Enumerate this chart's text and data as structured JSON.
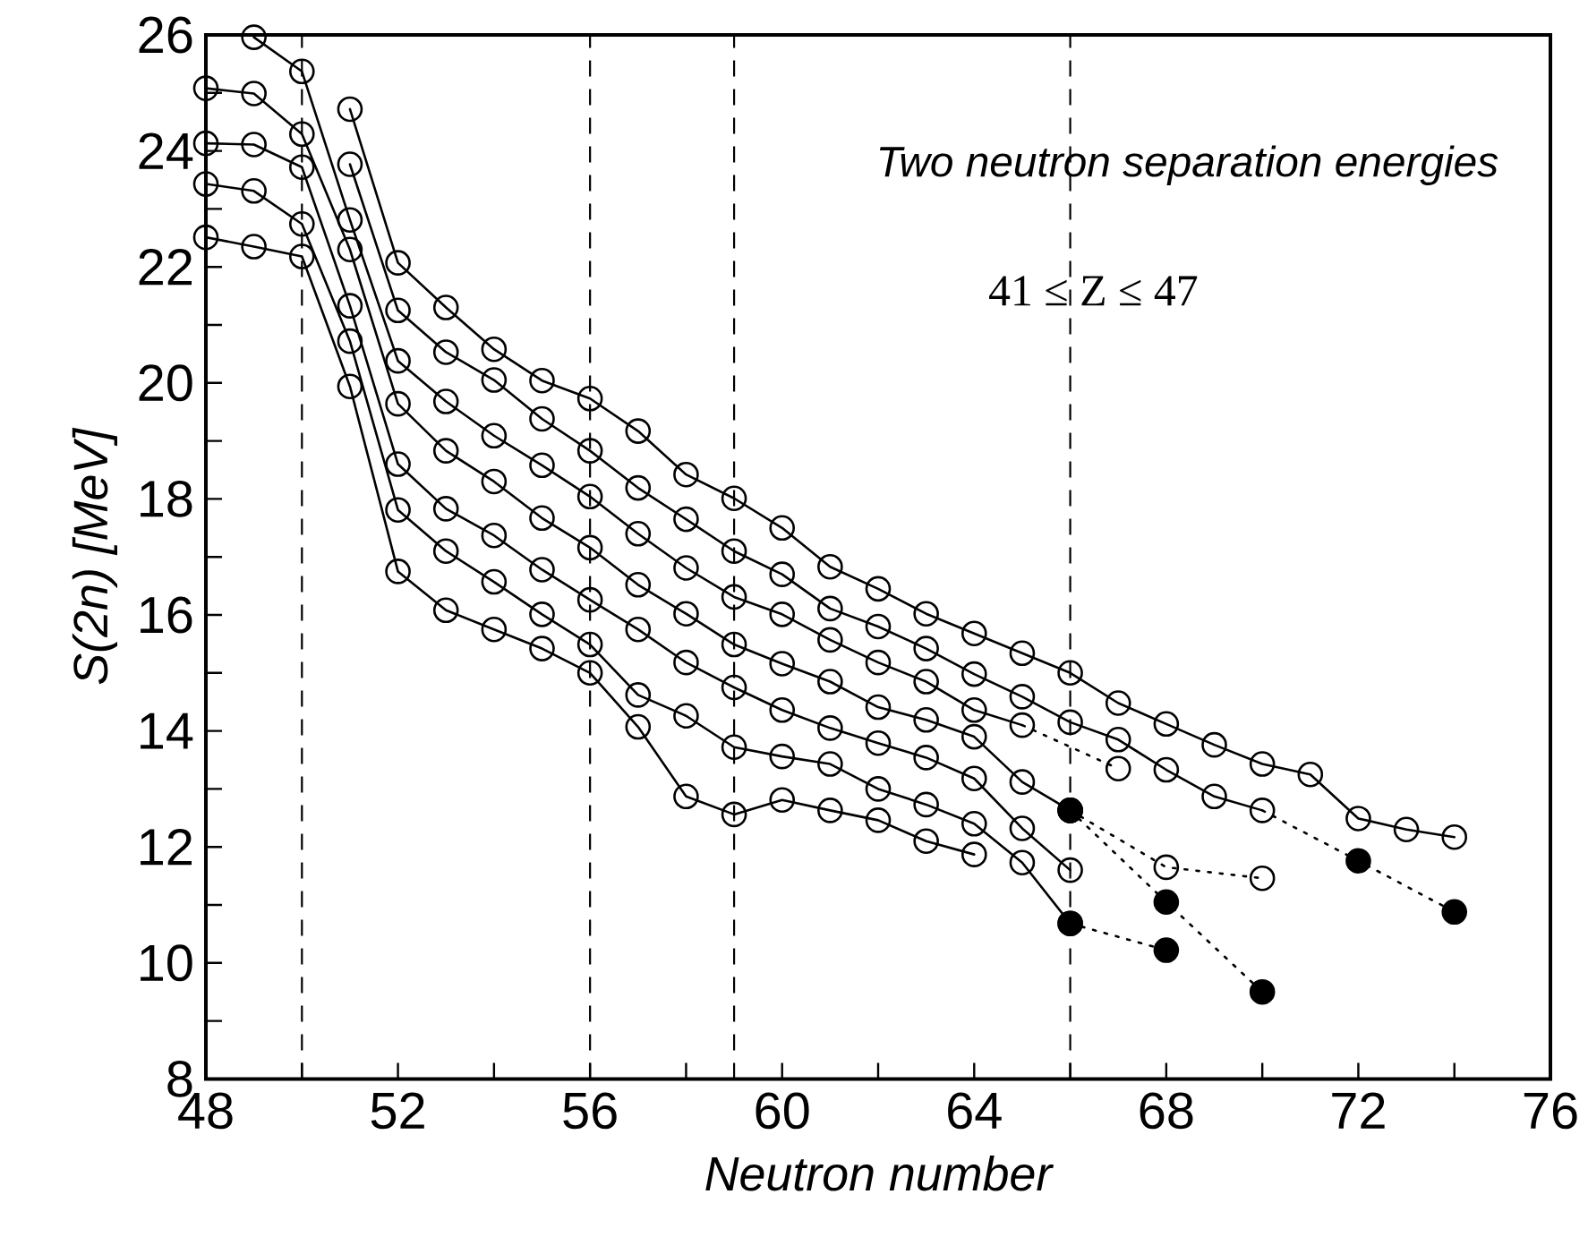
{
  "chart_data": {
    "type": "line",
    "title": "Two neutron separation energies",
    "subtitle": "41 ≤ Z ≤ 47",
    "xlabel": "Neutron number",
    "ylabel": "S(2n) [MeV]",
    "xlim": [
      48,
      76
    ],
    "ylim": [
      8,
      26
    ],
    "xticks": [
      48,
      {
        "value": 50,
        "label": null
      },
      52,
      {
        "value": 54,
        "label": null
      },
      56,
      {
        "value": 58,
        "label": null
      },
      60,
      {
        "value": 62,
        "label": null
      },
      64,
      {
        "value": 66,
        "label": null
      },
      68,
      {
        "value": 70,
        "label": null
      },
      72,
      {
        "value": 74,
        "label": null
      },
      76
    ],
    "yticks": [
      8,
      {
        "value": 9,
        "label": null
      },
      10,
      {
        "value": 11,
        "label": null
      },
      12,
      {
        "value": 13,
        "label": null
      },
      14,
      {
        "value": 15,
        "label": null
      },
      16,
      {
        "value": 17,
        "label": null
      },
      18,
      {
        "value": 19,
        "label": null
      },
      20,
      {
        "value": 21,
        "label": null
      },
      22,
      {
        "value": 23,
        "label": null
      },
      24,
      {
        "value": 25,
        "label": null
      },
      26
    ],
    "marker": "circle",
    "grid": false,
    "ref_lines": [
      {
        "axis": "x",
        "value": 50,
        "line_style": "dashed"
      },
      {
        "axis": "x",
        "value": 56,
        "line_style": "dashed"
      },
      {
        "axis": "x",
        "value": 59,
        "line_style": "dashed"
      },
      {
        "axis": "x",
        "value": 66,
        "line_style": "dashed"
      }
    ],
    "series": [
      {
        "color": "#000000",
        "x": [
          51,
          52,
          53,
          54,
          55,
          56,
          57,
          58,
          59,
          60,
          61,
          62,
          63,
          64,
          65,
          66,
          67,
          68,
          69,
          70,
          71,
          72,
          73,
          74
        ],
        "values": [
          24.72,
          22.07,
          21.3,
          20.58,
          20.04,
          19.73,
          19.17,
          18.42,
          18.01,
          17.5,
          16.83,
          16.45,
          16.02,
          15.68,
          15.34,
          15.0,
          14.48,
          14.12,
          13.76,
          13.43,
          13.25,
          12.49,
          12.3,
          12.17
        ]
      },
      {
        "color": "#000000",
        "x": [
          51,
          52,
          53,
          54,
          55,
          56,
          57,
          58,
          59,
          60,
          61,
          62,
          63,
          64,
          65,
          66,
          67,
          68,
          69,
          70
        ],
        "values": [
          23.77,
          21.25,
          20.53,
          20.05,
          19.38,
          18.83,
          18.19,
          17.65,
          17.1,
          16.7,
          16.11,
          15.8,
          15.42,
          14.98,
          14.59,
          14.15,
          13.85,
          13.33,
          12.87,
          12.63
        ]
      },
      {
        "color": "#000000",
        "x": [
          49,
          50,
          51,
          52,
          53,
          54,
          55,
          56,
          57,
          58,
          59,
          60,
          61,
          62,
          63,
          64,
          65
        ],
        "values": [
          25.96,
          25.37,
          22.81,
          20.38,
          19.68,
          19.09,
          18.58,
          18.04,
          17.4,
          16.81,
          16.31,
          16.01,
          15.57,
          15.18,
          14.85,
          14.36,
          14.1
        ]
      },
      {
        "color": "#000000",
        "x": [
          48,
          49,
          50,
          51,
          52,
          53,
          54,
          55,
          56,
          57,
          58,
          59,
          60,
          61,
          62,
          63,
          64,
          65,
          66
        ],
        "values": [
          25.08,
          24.99,
          24.29,
          22.3,
          19.64,
          18.83,
          18.3,
          17.67,
          17.16,
          16.52,
          16.02,
          15.49,
          15.16,
          14.85,
          14.41,
          14.19,
          13.9,
          13.12,
          12.63
        ]
      },
      {
        "color": "#000000",
        "x": [
          48,
          49,
          50,
          51,
          52,
          53,
          54,
          55,
          56,
          57,
          58,
          59,
          60,
          61,
          62,
          63,
          64,
          65,
          66
        ],
        "values": [
          24.13,
          24.11,
          23.72,
          21.33,
          18.6,
          17.83,
          17.37,
          16.78,
          16.26,
          15.75,
          15.18,
          14.75,
          14.36,
          14.05,
          13.79,
          13.54,
          13.18,
          12.32,
          11.6
        ]
      },
      {
        "color": "#000000",
        "x": [
          48,
          49,
          50,
          51,
          52,
          53,
          54,
          55,
          56,
          57,
          58,
          59,
          60,
          61,
          62,
          63,
          64,
          65,
          66
        ],
        "values": [
          23.43,
          23.31,
          22.74,
          20.72,
          17.81,
          17.1,
          16.57,
          16.01,
          15.49,
          14.62,
          14.26,
          13.72,
          13.56,
          13.43,
          13.0,
          12.73,
          12.4,
          11.73,
          10.68
        ]
      },
      {
        "color": "#000000",
        "x": [
          48,
          49,
          50,
          51,
          52,
          53,
          54,
          55,
          56,
          57,
          58,
          59,
          60,
          61,
          62,
          63,
          64
        ],
        "values": [
          22.51,
          22.35,
          22.18,
          19.94,
          16.75,
          16.08,
          15.75,
          15.42,
          15.0,
          14.07,
          12.87,
          12.56,
          12.81,
          12.63,
          12.46,
          12.1,
          11.87
        ]
      },
      {
        "color": "#000000",
        "marker": "none",
        "line_style": "dotted",
        "x": [
          70,
          72,
          74
        ],
        "values": [
          12.63,
          11.76,
          10.88
        ]
      },
      {
        "color": "#000000",
        "marker": "none",
        "line_style": "dotted",
        "x": [
          65,
          67
        ],
        "values": [
          14.1,
          13.35
        ]
      },
      {
        "color": "#000000",
        "marker": "circle",
        "line_style": "dotted",
        "x": [
          66,
          68,
          70
        ],
        "values": [
          12.63,
          11.65,
          11.46
        ]
      },
      {
        "color": "#000000",
        "marker": "circle",
        "x": [
          67
        ],
        "values": [
          13.35
        ]
      },
      {
        "color": "#000000",
        "marker": "none",
        "line_style": "dotted",
        "x": [
          66,
          68,
          70
        ],
        "values": [
          12.63,
          11.05,
          9.5
        ]
      },
      {
        "color": "#000000",
        "marker": "none",
        "line_style": "dotted",
        "x": [
          66,
          68
        ],
        "values": [
          10.68,
          10.22
        ]
      },
      {
        "type": "scatter",
        "color": "#000000",
        "x": [
          66,
          66,
          68,
          68,
          70,
          72,
          74
        ],
        "values": [
          12.63,
          10.68,
          11.05,
          10.22,
          9.5,
          11.76,
          10.88
        ]
      }
    ]
  }
}
